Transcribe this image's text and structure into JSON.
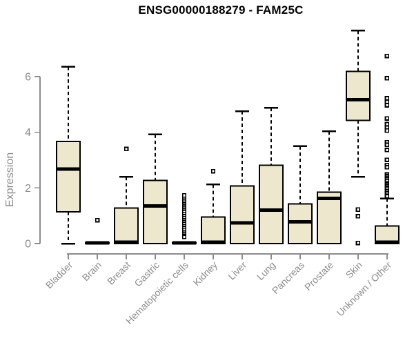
{
  "chart_data": {
    "type": "boxplot",
    "title": "ENSG00000188279 - FAM25C",
    "ylabel": "Expression",
    "xlabel": "",
    "ylim": [
      0,
      7.8
    ],
    "yticks": [
      0,
      2,
      4,
      6
    ],
    "grid": false,
    "legend": "none",
    "colors": {
      "box_fill": "#EDE8CD",
      "box_stroke": "#000000",
      "median": "#000000",
      "axis": "#8C8C8C",
      "tick_text": "#8C8C8C",
      "title_text": "#000000",
      "background": "#FFFFFF"
    },
    "categories": [
      "Bladder",
      "Brain",
      "Breast",
      "Gastric",
      "Hematopoietic cells",
      "Kidney",
      "Liver",
      "Lung",
      "Pancreas",
      "Prostate",
      "Skin",
      "Unknown / Other"
    ],
    "boxes": [
      {
        "label": "Bladder",
        "whisker_low": 0,
        "q1": 1.14,
        "median": 2.68,
        "q3": 3.67,
        "whisker_high": 6.35,
        "outliers": []
      },
      {
        "label": "Brain",
        "whisker_low": 0,
        "q1": 0,
        "median": 0.02,
        "q3": 0.04,
        "whisker_high": 0.04,
        "outliers": [
          0.84
        ]
      },
      {
        "label": "Breast",
        "whisker_low": 0,
        "q1": 0,
        "median": 0.05,
        "q3": 1.28,
        "whisker_high": 2.4,
        "outliers": [
          3.4
        ]
      },
      {
        "label": "Gastric",
        "whisker_low": 0,
        "q1": 0,
        "median": 1.35,
        "q3": 2.27,
        "whisker_high": 3.92,
        "outliers": []
      },
      {
        "label": "Hematopoietic cells",
        "whisker_low": 0,
        "q1": 0,
        "median": 0.02,
        "q3": 0.04,
        "whisker_high": 0.04,
        "outliers": [
          0.24,
          0.4,
          0.47,
          0.54,
          0.61,
          0.68,
          0.75,
          0.82,
          0.89,
          0.96,
          1.03,
          1.1,
          1.17,
          1.24,
          1.31,
          1.38,
          1.45,
          1.52,
          1.59,
          1.66,
          1.73
        ]
      },
      {
        "label": "Kidney",
        "whisker_low": 0,
        "q1": 0,
        "median": 0.05,
        "q3": 0.95,
        "whisker_high": 2.12,
        "outliers": [
          2.6
        ]
      },
      {
        "label": "Liver",
        "whisker_low": 0,
        "q1": 0,
        "median": 0.75,
        "q3": 2.07,
        "whisker_high": 4.76,
        "outliers": []
      },
      {
        "label": "Lung",
        "whisker_low": 0,
        "q1": 0,
        "median": 1.2,
        "q3": 2.82,
        "whisker_high": 4.88,
        "outliers": []
      },
      {
        "label": "Pancreas",
        "whisker_low": 0,
        "q1": 0,
        "median": 0.78,
        "q3": 1.43,
        "whisker_high": 3.5,
        "outliers": []
      },
      {
        "label": "Prostate",
        "whisker_low": 0,
        "q1": 0,
        "median": 1.62,
        "q3": 1.85,
        "whisker_high": 4.03,
        "outliers": []
      },
      {
        "label": "Skin",
        "whisker_low": 2.4,
        "q1": 4.43,
        "median": 5.17,
        "q3": 6.18,
        "whisker_high": 7.65,
        "outliers": [
          1.22,
          0.98,
          0.02
        ]
      },
      {
        "label": "Unknown / Other",
        "whisker_low": 0,
        "q1": 0,
        "median": 0.05,
        "q3": 0.63,
        "whisker_high": 1.62,
        "outliers": [
          6.74,
          5.94,
          5.22,
          5.1,
          4.97,
          4.5,
          4.29,
          4.17,
          4.06,
          3.64,
          3.55,
          3.36,
          3.01,
          2.82,
          2.74,
          2.48,
          2.42,
          2.36,
          2.3,
          2.24,
          2.18,
          2.12,
          2.06,
          2.0,
          1.94,
          1.88,
          1.82,
          1.76,
          1.7
        ]
      }
    ]
  }
}
